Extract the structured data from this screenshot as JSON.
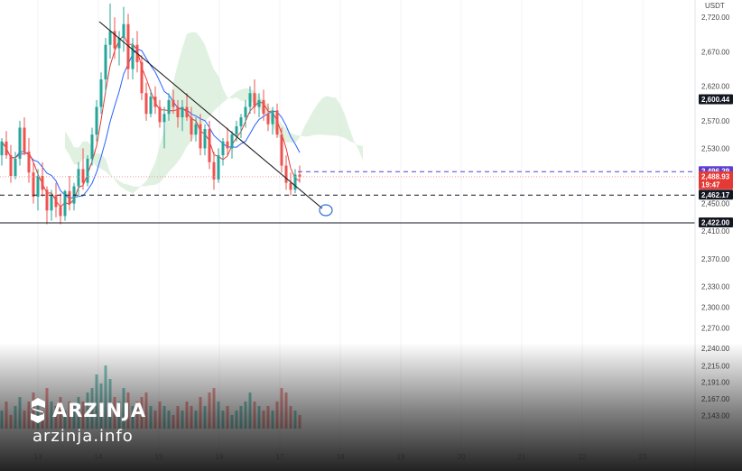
{
  "chart_data": {
    "type": "candlestick",
    "currency": "USDT",
    "y_range": [
      2120,
      2745
    ],
    "y_ticks": [
      {
        "label": "2,720.00",
        "value": 2720
      },
      {
        "label": "2,670.00",
        "value": 2670
      },
      {
        "label": "2,620.00",
        "value": 2620
      },
      {
        "label": "2,570.00",
        "value": 2570
      },
      {
        "label": "2,530.00",
        "value": 2530
      },
      {
        "label": "2,450.00",
        "value": 2450
      },
      {
        "label": "2,410.00",
        "value": 2410
      },
      {
        "label": "2,370.00",
        "value": 2370
      },
      {
        "label": "2,330.00",
        "value": 2330
      },
      {
        "label": "2,300.00",
        "value": 2300
      },
      {
        "label": "2,270.00",
        "value": 2270
      },
      {
        "label": "2,240.00",
        "value": 2240
      },
      {
        "label": "2,215.00",
        "value": 2215
      },
      {
        "label": "2,191.00",
        "value": 2191
      },
      {
        "label": "2,167.00",
        "value": 2167
      },
      {
        "label": "2,143.00",
        "value": 2143
      }
    ],
    "x_ticks": [
      {
        "label": "13",
        "value": 13
      },
      {
        "label": "14",
        "value": 14
      },
      {
        "label": "15",
        "value": 15
      },
      {
        "label": "16",
        "value": 16
      },
      {
        "label": "17",
        "value": 17
      },
      {
        "label": "18",
        "value": 18
      },
      {
        "label": "19",
        "value": 19
      },
      {
        "label": "20",
        "value": 20
      },
      {
        "label": "21",
        "value": 21
      },
      {
        "label": "22",
        "value": 22
      },
      {
        "label": "23",
        "value": 23
      }
    ],
    "price_tags": [
      {
        "label": "2,600.44",
        "value": 2600.44,
        "color": "#131722",
        "line": false
      },
      {
        "label": "2,496.29",
        "value": 2496.29,
        "color": "#5b3fd1",
        "line": "dashed"
      },
      {
        "label": "2,488.93",
        "sub": "19:47",
        "value": 2488.93,
        "color": "#e53935",
        "line": "dotted"
      },
      {
        "label": "2,462.17",
        "value": 2462.17,
        "color": "#131722",
        "line": "dashed"
      },
      {
        "label": "2,422.00",
        "value": 2422.0,
        "color": "#131722",
        "line": "solid"
      }
    ],
    "candles": [
      [
        2520,
        2545,
        2505,
        2540
      ],
      [
        2540,
        2555,
        2515,
        2520
      ],
      [
        2520,
        2535,
        2480,
        2490
      ],
      [
        2490,
        2525,
        2485,
        2515
      ],
      [
        2515,
        2570,
        2505,
        2560
      ],
      [
        2560,
        2575,
        2520,
        2525
      ],
      [
        2525,
        2545,
        2480,
        2495
      ],
      [
        2495,
        2510,
        2450,
        2460
      ],
      [
        2460,
        2500,
        2440,
        2490
      ],
      [
        2490,
        2510,
        2460,
        2470
      ],
      [
        2470,
        2475,
        2420,
        2440
      ],
      [
        2440,
        2470,
        2425,
        2462
      ],
      [
        2462,
        2480,
        2430,
        2445
      ],
      [
        2445,
        2465,
        2420,
        2432
      ],
      [
        2432,
        2470,
        2425,
        2468
      ],
      [
        2468,
        2490,
        2440,
        2450
      ],
      [
        2450,
        2480,
        2440,
        2475
      ],
      [
        2475,
        2510,
        2460,
        2500
      ],
      [
        2500,
        2530,
        2470,
        2480
      ],
      [
        2480,
        2520,
        2475,
        2515
      ],
      [
        2515,
        2560,
        2505,
        2550
      ],
      [
        2550,
        2600,
        2540,
        2590
      ],
      [
        2590,
        2640,
        2580,
        2630
      ],
      [
        2630,
        2690,
        2610,
        2680
      ],
      [
        2680,
        2740,
        2660,
        2700
      ],
      [
        2700,
        2720,
        2660,
        2675
      ],
      [
        2675,
        2700,
        2650,
        2690
      ],
      [
        2690,
        2735,
        2670,
        2710
      ],
      [
        2710,
        2725,
        2630,
        2645
      ],
      [
        2645,
        2690,
        2630,
        2680
      ],
      [
        2680,
        2700,
        2640,
        2655
      ],
      [
        2655,
        2665,
        2600,
        2610
      ],
      [
        2610,
        2625,
        2570,
        2580
      ],
      [
        2580,
        2615,
        2575,
        2605
      ],
      [
        2605,
        2620,
        2580,
        2590
      ],
      [
        2590,
        2600,
        2560,
        2568
      ],
      [
        2568,
        2590,
        2530,
        2580
      ],
      [
        2580,
        2610,
        2570,
        2600
      ],
      [
        2600,
        2615,
        2580,
        2590
      ],
      [
        2590,
        2600,
        2560,
        2575
      ],
      [
        2575,
        2600,
        2555,
        2590
      ],
      [
        2590,
        2610,
        2570,
        2575
      ],
      [
        2575,
        2590,
        2540,
        2550
      ],
      [
        2550,
        2575,
        2540,
        2565
      ],
      [
        2565,
        2580,
        2520,
        2530
      ],
      [
        2530,
        2565,
        2520,
        2558
      ],
      [
        2558,
        2570,
        2500,
        2510
      ],
      [
        2510,
        2525,
        2470,
        2485
      ],
      [
        2485,
        2530,
        2480,
        2520
      ],
      [
        2520,
        2545,
        2505,
        2540
      ],
      [
        2540,
        2560,
        2520,
        2530
      ],
      [
        2530,
        2555,
        2515,
        2550
      ],
      [
        2550,
        2570,
        2540,
        2562
      ],
      [
        2562,
        2580,
        2545,
        2575
      ],
      [
        2575,
        2600,
        2560,
        2590
      ],
      [
        2590,
        2620,
        2580,
        2610
      ],
      [
        2610,
        2630,
        2580,
        2590
      ],
      [
        2590,
        2610,
        2575,
        2600
      ],
      [
        2600,
        2615,
        2570,
        2580
      ],
      [
        2580,
        2595,
        2555,
        2565
      ],
      [
        2565,
        2590,
        2550,
        2585
      ],
      [
        2585,
        2595,
        2545,
        2550
      ],
      [
        2550,
        2560,
        2495,
        2505
      ],
      [
        2505,
        2520,
        2470,
        2480
      ],
      [
        2480,
        2495,
        2462,
        2470
      ],
      [
        2470,
        2500,
        2465,
        2492
      ],
      [
        2492,
        2505,
        2480,
        2489
      ]
    ],
    "volumes": [
      4,
      6,
      3,
      5,
      7,
      4,
      6,
      8,
      5,
      4,
      9,
      6,
      5,
      7,
      4,
      6,
      5,
      7,
      6,
      8,
      9,
      12,
      10,
      14,
      11,
      7,
      6,
      9,
      8,
      5,
      6,
      7,
      8,
      5,
      4,
      6,
      5,
      4,
      3,
      5,
      4,
      6,
      5,
      4,
      7,
      5,
      8,
      9,
      6,
      4,
      5,
      3,
      4,
      5,
      6,
      8,
      6,
      5,
      4,
      5,
      4,
      6,
      9,
      8,
      5,
      4,
      3
    ]
  },
  "branding": {
    "name": "ARZINJA",
    "site": "arzinja.info"
  }
}
